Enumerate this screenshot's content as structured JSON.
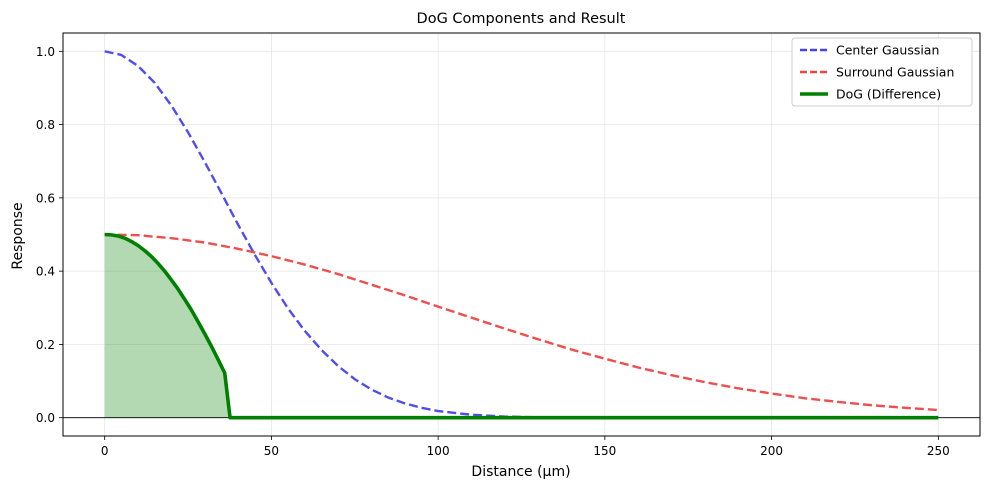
{
  "chart_data": {
    "type": "line",
    "title": "DoG Components and Result",
    "xlabel": "Distance (µm)",
    "ylabel": "Response",
    "xlim": [
      -12.5,
      262.5
    ],
    "ylim": [
      -0.05,
      1.05
    ],
    "xticks": [
      0,
      50,
      100,
      150,
      200,
      250
    ],
    "yticks": [
      0.0,
      0.2,
      0.4,
      0.6,
      0.8,
      1.0
    ],
    "xtick_labels": [
      "0",
      "50",
      "100",
      "150",
      "200",
      "250"
    ],
    "ytick_labels": [
      "0.0",
      "0.2",
      "0.4",
      "0.6",
      "0.8",
      "1.0"
    ],
    "grid": true,
    "legend_position": "top-right",
    "series": [
      {
        "name": "Center Gaussian",
        "color": "#4444ee",
        "style": "dashed",
        "x": [
          0,
          5,
          10,
          15,
          20,
          25,
          30,
          35,
          40,
          45,
          50,
          55,
          60,
          65,
          70,
          75,
          80,
          85,
          90,
          95,
          100,
          110,
          120,
          130,
          150,
          175,
          200,
          225,
          250
        ],
        "y": [
          1.0,
          0.99,
          0.96,
          0.914,
          0.852,
          0.779,
          0.698,
          0.613,
          0.527,
          0.445,
          0.368,
          0.298,
          0.237,
          0.185,
          0.141,
          0.105,
          0.077,
          0.055,
          0.039,
          0.027,
          0.018,
          0.008,
          0.003,
          0.001,
          0.0,
          0.0,
          0.0,
          0.0,
          0.0
        ]
      },
      {
        "name": "Surround Gaussian",
        "color": "#ee4444",
        "style": "dashed",
        "x": [
          0,
          10,
          20,
          30,
          40,
          50,
          60,
          70,
          80,
          90,
          100,
          110,
          120,
          130,
          140,
          150,
          160,
          170,
          180,
          190,
          200,
          210,
          220,
          230,
          240,
          250
        ],
        "y": [
          0.5,
          0.498,
          0.49,
          0.478,
          0.461,
          0.441,
          0.418,
          0.392,
          0.363,
          0.334,
          0.303,
          0.273,
          0.243,
          0.214,
          0.186,
          0.161,
          0.137,
          0.116,
          0.097,
          0.08,
          0.066,
          0.053,
          0.043,
          0.034,
          0.027,
          0.021
        ]
      },
      {
        "name": "DoG (Difference)",
        "color": "#008000",
        "style": "solid",
        "fill": true,
        "fill_color": "#008000",
        "x": [
          0,
          2,
          4,
          6,
          8,
          10,
          12,
          14,
          16,
          18,
          20,
          22,
          24,
          26,
          28,
          30,
          32,
          34,
          36,
          37.6,
          40,
          60,
          100,
          150,
          200,
          250
        ],
        "y": [
          0.5,
          0.499,
          0.496,
          0.49,
          0.481,
          0.47,
          0.456,
          0.44,
          0.421,
          0.4,
          0.376,
          0.351,
          0.323,
          0.294,
          0.262,
          0.229,
          0.195,
          0.159,
          0.122,
          0.0,
          0.0,
          0.0,
          0.0,
          0.0,
          0.0,
          0.0
        ]
      }
    ]
  }
}
